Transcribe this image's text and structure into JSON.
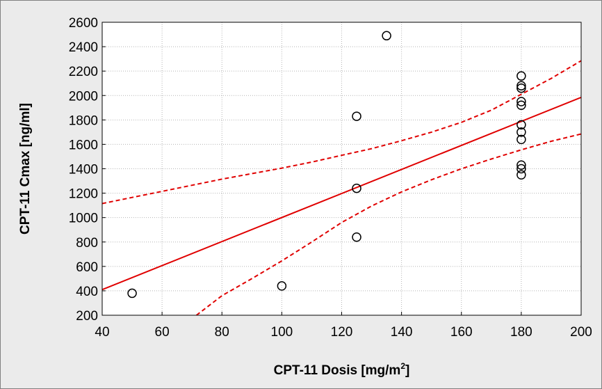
{
  "chart_data": {
    "type": "scatter",
    "xlabel": "CPT-11 Dosis [mg/m",
    "xlabel_superscript": "2",
    "xlabel_suffix": "]",
    "ylabel": "CPT-11 Cmax [ng/ml]",
    "xlim": [
      40,
      200
    ],
    "ylim": [
      200,
      2600
    ],
    "x_ticks": [
      "40",
      "60",
      "80",
      "100",
      "120",
      "140",
      "160",
      "180",
      "200"
    ],
    "y_ticks": [
      "200",
      "400",
      "600",
      "800",
      "1000",
      "1200",
      "1400",
      "1600",
      "1800",
      "2000",
      "2200",
      "2400",
      "2600"
    ],
    "grid": true,
    "points": [
      {
        "x": 50,
        "y": 380
      },
      {
        "x": 100,
        "y": 440
      },
      {
        "x": 125,
        "y": 840
      },
      {
        "x": 125,
        "y": 1240
      },
      {
        "x": 125,
        "y": 1830
      },
      {
        "x": 135,
        "y": 2490
      },
      {
        "x": 180,
        "y": 1350
      },
      {
        "x": 180,
        "y": 1400
      },
      {
        "x": 180,
        "y": 1430
      },
      {
        "x": 180,
        "y": 1640
      },
      {
        "x": 180,
        "y": 1700
      },
      {
        "x": 180,
        "y": 1760
      },
      {
        "x": 180,
        "y": 1920
      },
      {
        "x": 180,
        "y": 1950
      },
      {
        "x": 180,
        "y": 2060
      },
      {
        "x": 180,
        "y": 2080
      },
      {
        "x": 180,
        "y": 2160
      }
    ],
    "regression_line": {
      "x": [
        40,
        200
      ],
      "y": [
        410,
        1985
      ]
    },
    "confidence_upper": {
      "x": [
        40,
        50,
        60,
        70,
        80,
        90,
        100,
        110,
        120,
        130,
        140,
        150,
        160,
        170,
        180,
        190,
        200
      ],
      "y": [
        1115,
        1165,
        1215,
        1265,
        1315,
        1360,
        1405,
        1455,
        1510,
        1565,
        1630,
        1700,
        1780,
        1880,
        2010,
        2140,
        2285
      ]
    },
    "confidence_lower": {
      "x": [
        71.5,
        80,
        90,
        100,
        110,
        120,
        130,
        140,
        150,
        160,
        170,
        180,
        190,
        200
      ],
      "y": [
        200,
        360,
        500,
        645,
        800,
        960,
        1095,
        1210,
        1310,
        1400,
        1480,
        1555,
        1625,
        1685
      ]
    },
    "colors": {
      "regression": "#e00000",
      "confidence": "#e00000",
      "points": "#000000",
      "grid": "#b4b4b4",
      "background": "#ebebeb",
      "plot_background": "#ffffff"
    }
  }
}
